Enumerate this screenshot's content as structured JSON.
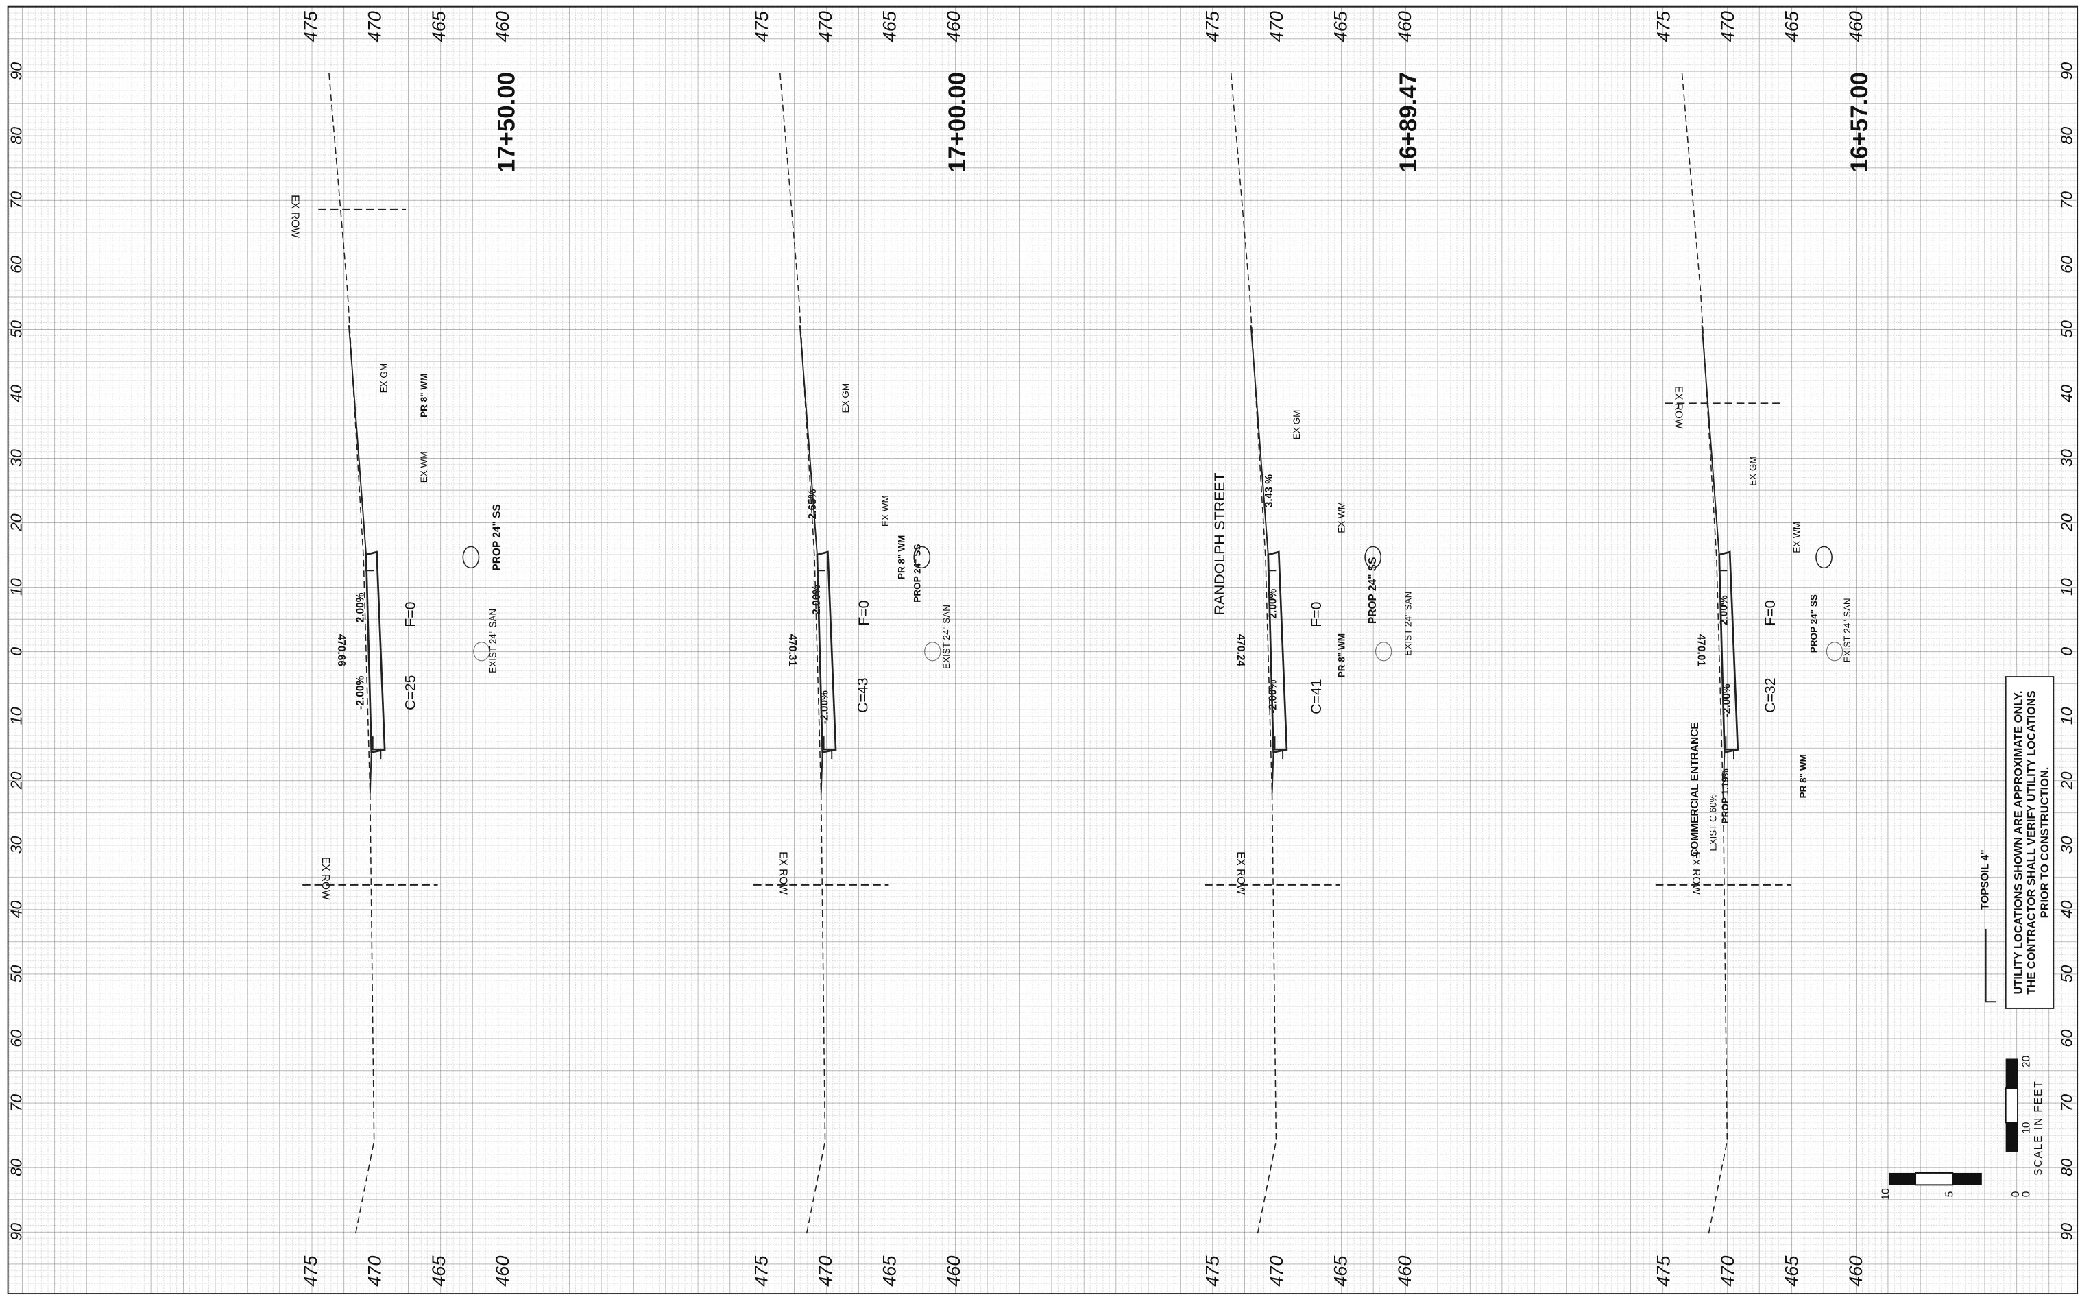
{
  "offset_labels": [
    "90",
    "80",
    "70",
    "60",
    "50",
    "40",
    "30",
    "20",
    "10",
    "0",
    "10",
    "20",
    "30",
    "40",
    "50",
    "60",
    "70",
    "80",
    "90"
  ],
  "sections": [
    {
      "station": "17+50.00",
      "elevations_top": [
        "475",
        "470",
        "465",
        "460"
      ],
      "elevations_bottom": [
        "475",
        "470",
        "465",
        "460"
      ],
      "annotations": [
        "EX ROW",
        "EX GM",
        "PR 8\" WM",
        "EX WM",
        "PROP 24\" SS",
        "2.00%",
        "F=0",
        "470.66",
        "EXIST 24\" SAN",
        "-2.00%",
        "C=25",
        "EX ROW"
      ]
    },
    {
      "station": "17+00.00",
      "elevations_top": [
        "475",
        "470",
        "465",
        "460"
      ],
      "elevations_bottom": [
        "475",
        "470",
        "465",
        "460"
      ],
      "annotations": [
        "EX GM",
        "2.65%",
        "EX WM",
        "PR 8\" WM",
        "PROP 24\" SS",
        "2.00%",
        "F=0",
        "470.31",
        "EXIST 24\" SAN",
        "-2.00%",
        "C=43",
        "EX ROW"
      ]
    },
    {
      "station": "16+89.47",
      "elevations_top": [
        "475",
        "470",
        "465",
        "460"
      ],
      "elevations_bottom": [
        "475",
        "470",
        "465",
        "460"
      ],
      "annotations": [
        "EX GM",
        "3.43 %",
        "RANDOLPH STREET",
        "EX WM",
        "PROP 24\" SS",
        "2.00%",
        "F=0",
        "470.24",
        "PR 8\" WM",
        "EXIST 24\" SAN",
        "-2.00%",
        "C=41",
        "EX ROW"
      ]
    },
    {
      "station": "16+57.00",
      "elevations_top": [
        "475",
        "470",
        "465",
        "460"
      ],
      "elevations_bottom": [
        "475",
        "470",
        "465",
        "460"
      ],
      "annotations": [
        "EX ROW",
        "EX GM",
        "EX WM",
        "2.00%",
        "F=0",
        "PROP 24\" SS",
        "470.01",
        "EXIST 24\" SAN",
        "-2.00%",
        "C=32",
        "COMMERCIAL ENTRANCE",
        "PROP 1.19%",
        "EXIST C.60%",
        "PR 8\" WM",
        "EX ROW"
      ]
    }
  ],
  "notes": {
    "topsoil": "TOPSOIL 4\"",
    "utility": [
      "UTILITY LOCATIONS SHOWN ARE APPROXIMATE ONLY.",
      "THE CONTRACTOR SHALL VERIFY UTILITY LOCATIONS",
      "PRIOR TO CONSTRUCTION."
    ]
  },
  "scale": {
    "title": "SCALE IN FEET",
    "horizontal": [
      "10",
      "5",
      "0"
    ],
    "vertical": [
      "0",
      "10",
      "20"
    ]
  }
}
